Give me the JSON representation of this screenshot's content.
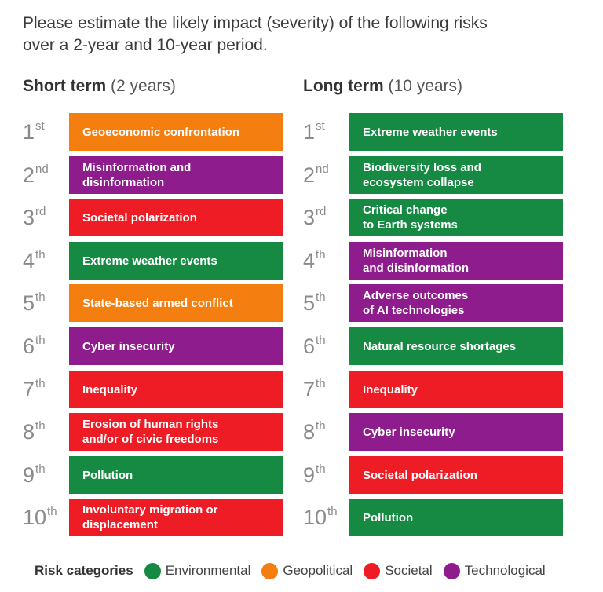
{
  "question": "Please estimate the likely impact (severity) of the following risks over a 2-year and 10-year period.",
  "colors": {
    "Environmental": "#168a43",
    "Geopolitical": "#f47e0f",
    "Societal": "#ee1c25",
    "Technological": "#8e1c8c"
  },
  "short_term": {
    "title": "Short term",
    "subtitle": "(2 years)",
    "rows": [
      {
        "num": "1",
        "suffix": "st",
        "label": "Geoeconomic confrontation",
        "category": "Geopolitical"
      },
      {
        "num": "2",
        "suffix": "nd",
        "label": "Misinformation and\ndisinformation",
        "category": "Technological"
      },
      {
        "num": "3",
        "suffix": "rd",
        "label": "Societal polarization",
        "category": "Societal"
      },
      {
        "num": "4",
        "suffix": "th",
        "label": "Extreme weather events",
        "category": "Environmental"
      },
      {
        "num": "5",
        "suffix": "th",
        "label": "State-based armed conflict",
        "category": "Geopolitical"
      },
      {
        "num": "6",
        "suffix": "th",
        "label": "Cyber insecurity",
        "category": "Technological"
      },
      {
        "num": "7",
        "suffix": "th",
        "label": "Inequality",
        "category": "Societal"
      },
      {
        "num": "8",
        "suffix": "th",
        "label": "Erosion of human rights\nand/or of civic freedoms",
        "category": "Societal"
      },
      {
        "num": "9",
        "suffix": "th",
        "label": "Pollution",
        "category": "Environmental"
      },
      {
        "num": "10",
        "suffix": "th",
        "label": "Involuntary migration or\ndisplacement",
        "category": "Societal"
      }
    ]
  },
  "long_term": {
    "title": "Long term",
    "subtitle": "(10 years)",
    "rows": [
      {
        "num": "1",
        "suffix": "st",
        "label": "Extreme weather events",
        "category": "Environmental"
      },
      {
        "num": "2",
        "suffix": "nd",
        "label": "Biodiversity loss and\necosystem collapse",
        "category": "Environmental"
      },
      {
        "num": "3",
        "suffix": "rd",
        "label": "Critical change\nto Earth systems",
        "category": "Environmental"
      },
      {
        "num": "4",
        "suffix": "th",
        "label": "Misinformation\nand disinformation",
        "category": "Technological"
      },
      {
        "num": "5",
        "suffix": "th",
        "label": "Adverse outcomes\nof AI technologies",
        "category": "Technological"
      },
      {
        "num": "6",
        "suffix": "th",
        "label": "Natural resource shortages",
        "category": "Environmental"
      },
      {
        "num": "7",
        "suffix": "th",
        "label": "Inequality",
        "category": "Societal"
      },
      {
        "num": "8",
        "suffix": "th",
        "label": "Cyber insecurity",
        "category": "Technological"
      },
      {
        "num": "9",
        "suffix": "th",
        "label": "Societal polarization",
        "category": "Societal"
      },
      {
        "num": "10",
        "suffix": "th",
        "label": "Pollution",
        "category": "Environmental"
      }
    ]
  },
  "legend": {
    "title": "Risk categories",
    "items": [
      {
        "label": "Environmental",
        "category": "Environmental"
      },
      {
        "label": "Geopolitical",
        "category": "Geopolitical"
      },
      {
        "label": "Societal",
        "category": "Societal"
      },
      {
        "label": "Technological",
        "category": "Technological"
      }
    ]
  }
}
